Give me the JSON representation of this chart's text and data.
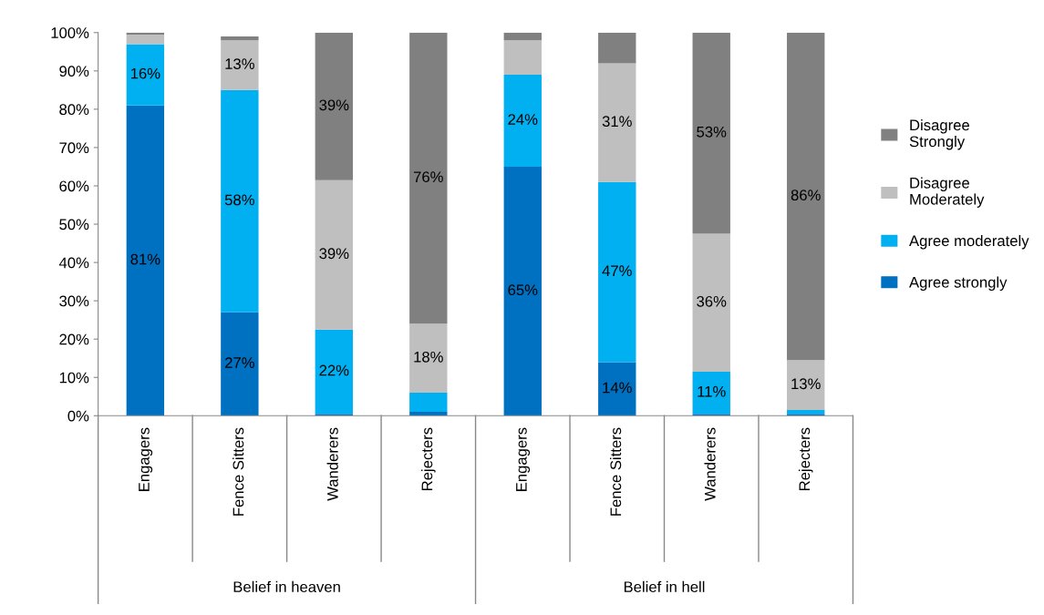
{
  "chart_data": {
    "type": "bar",
    "stacked": true,
    "categories": [
      "Engagers",
      "Fence Sitters",
      "Wanderers",
      "Rejecters",
      "Engagers",
      "Fence Sitters",
      "Wanderers",
      "Rejecters"
    ],
    "series": [
      {
        "name": "Agree strongly",
        "color": "#0070c0",
        "values": [
          81,
          27,
          0.5,
          1,
          65,
          14,
          0.5,
          0.5
        ],
        "value_labels": [
          "81%",
          "27%",
          null,
          null,
          "65%",
          "14%",
          null,
          null
        ]
      },
      {
        "name": "Agree moderately",
        "color": "#00b0f0",
        "values": [
          16,
          58,
          22,
          5,
          24,
          47,
          11,
          1
        ],
        "value_labels": [
          "16%",
          "58%",
          "22%",
          null,
          "24%",
          "47%",
          "11%",
          null
        ]
      },
      {
        "name": "Disagree Moderately",
        "color": "#bfbfbf",
        "values": [
          2.5,
          13,
          39,
          18,
          9,
          31,
          36,
          13
        ],
        "value_labels": [
          null,
          "13%",
          "39%",
          "18%",
          null,
          "31%",
          "36%",
          "13%"
        ]
      },
      {
        "name": "Disagree Strongly",
        "color": "#808080",
        "values": [
          0.5,
          1,
          38.5,
          76,
          2,
          8,
          52.5,
          85.5
        ],
        "value_labels": [
          null,
          null,
          "39%",
          "76%",
          null,
          null,
          "53%",
          "86%"
        ]
      }
    ],
    "annotations": [
      "Belief in heaven",
      "Belief in hell"
    ],
    "ylim": [
      0,
      100
    ],
    "yticks": [
      {
        "value": 0,
        "label": "0%"
      },
      {
        "value": 10,
        "label": "10%"
      },
      {
        "value": 20,
        "label": "20%"
      },
      {
        "value": 30,
        "label": "30%"
      },
      {
        "value": 40,
        "label": "40%"
      },
      {
        "value": 50,
        "label": "50%"
      },
      {
        "value": 60,
        "label": "60%"
      },
      {
        "value": 70,
        "label": "70%"
      },
      {
        "value": 80,
        "label": "80%"
      },
      {
        "value": 90,
        "label": "90%"
      },
      {
        "value": 100,
        "label": "100%"
      }
    ],
    "grid": false,
    "legend": "right"
  }
}
